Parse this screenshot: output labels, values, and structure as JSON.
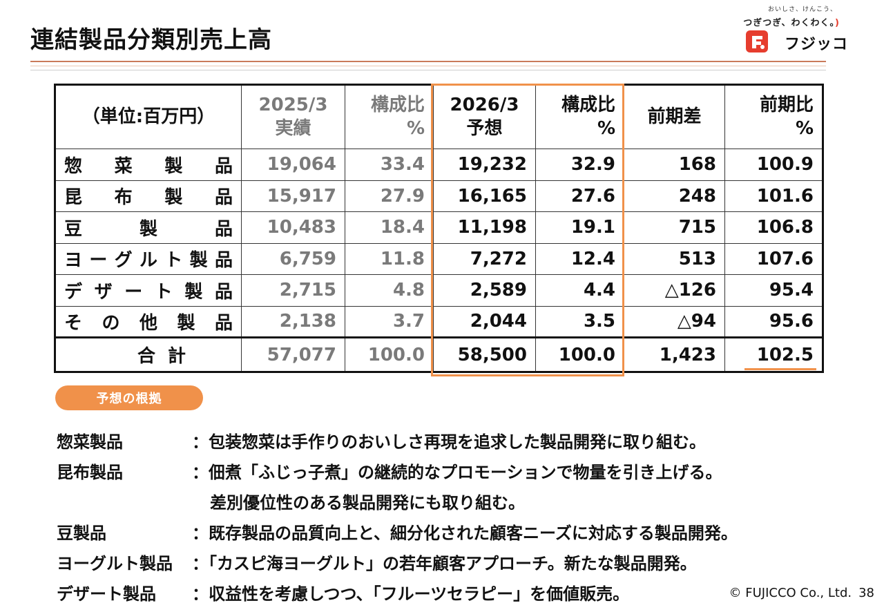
{
  "title": "連結製品分類別売上高",
  "logo": {
    "tagline_small": "おいしさ、けんこう、",
    "tagline": "つぎつぎ、わくわく。",
    "smile": ")",
    "brand": "フジッコ",
    "mark_color": "#e63d2e"
  },
  "table": {
    "unit": "（単位:百万円）",
    "col_headers": {
      "prev_actual": [
        "2025/3",
        "実績"
      ],
      "prev_ratio": [
        "構成比",
        "%"
      ],
      "forecast": [
        "2026/3",
        "予想"
      ],
      "fc_ratio": [
        "構成比",
        "%"
      ],
      "diff": "前期差",
      "yoy": [
        "前期比",
        "%"
      ]
    },
    "rows": [
      {
        "label_chars": [
          "惣",
          "菜",
          "製",
          "品"
        ],
        "prev": "19,064",
        "prev_ratio": "33.4",
        "fc": "19,232",
        "fc_ratio": "32.9",
        "diff": "168",
        "yoy": "100.9"
      },
      {
        "label_chars": [
          "昆",
          "布",
          "製",
          "品"
        ],
        "prev": "15,917",
        "prev_ratio": "27.9",
        "fc": "16,165",
        "fc_ratio": "27.6",
        "diff": "248",
        "yoy": "101.6"
      },
      {
        "label_chars": [
          "豆",
          "製",
          "品"
        ],
        "prev": "10,483",
        "prev_ratio": "18.4",
        "fc": "11,198",
        "fc_ratio": "19.1",
        "diff": "715",
        "yoy": "106.8"
      },
      {
        "label_chars": [
          "ヨ",
          "ー",
          "グ",
          "ル",
          "ト",
          "製",
          "品"
        ],
        "prev": "6,759",
        "prev_ratio": "11.8",
        "fc": "7,272",
        "fc_ratio": "12.4",
        "diff": "513",
        "yoy": "107.6"
      },
      {
        "label_chars": [
          "デ",
          "ザ",
          "ー",
          "ト",
          "製",
          "品"
        ],
        "prev": "2,715",
        "prev_ratio": "4.8",
        "fc": "2,589",
        "fc_ratio": "4.4",
        "diff": "△126",
        "yoy": "95.4"
      },
      {
        "label_chars": [
          "そ",
          "の",
          "他",
          "製",
          "品"
        ],
        "prev": "2,138",
        "prev_ratio": "3.7",
        "fc": "2,044",
        "fc_ratio": "3.5",
        "diff": "△94",
        "yoy": "95.6"
      }
    ],
    "total": {
      "label_chars": [
        "合",
        "計"
      ],
      "prev": "57,077",
      "prev_ratio": "100.0",
      "fc": "58,500",
      "fc_ratio": "100.0",
      "diff": "1,423",
      "yoy": "102.5"
    },
    "highlight_color": "#f0914a"
  },
  "basis": {
    "badge": "予想の根拠",
    "items": [
      {
        "name": "惣菜製品",
        "text": "：包装惣菜は手作りのおいしさ再現を追求した製品開発に取り組む。"
      },
      {
        "name": "昆布製品",
        "text": "：佃煮「ふじっ子煮」の継続的なプロモーションで物量を引き上げる。"
      },
      {
        "name": "",
        "text": "差別優位性のある製品開発にも取り組む。"
      },
      {
        "name": "豆製品",
        "text": "：既存製品の品質向上と、細分化された顧客ニーズに対応する製品開発。"
      },
      {
        "name": "ヨーグルト製品",
        "text": "：「カスピ海ヨーグルト」の若年顧客アプローチ。新たな製品開発。"
      },
      {
        "name": "デザート製品",
        "text": "：収益性を考慮しつつ、「フルーツセラピー」を価値販売。"
      }
    ]
  },
  "footer": {
    "copyright": "© FUJICCO Co., Ltd.",
    "page": "38"
  }
}
